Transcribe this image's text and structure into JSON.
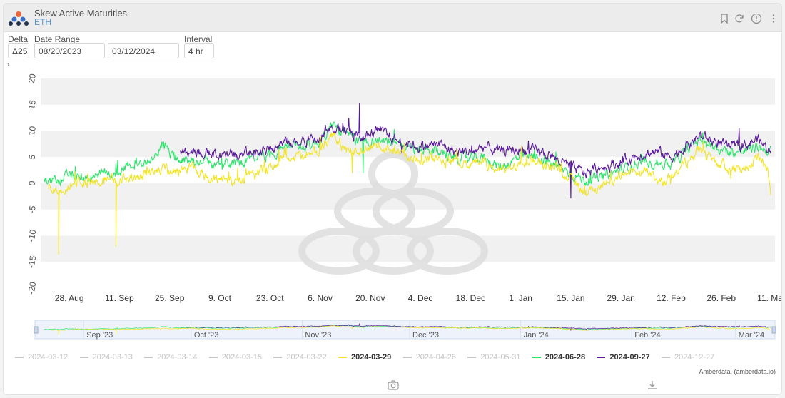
{
  "header": {
    "title": "Skew Active Maturities",
    "subtitle": "ETH"
  },
  "controls": {
    "delta_label": "Delta",
    "delta_value": "Δ25",
    "range_label": "Date Range",
    "range_start": "08/20/2023",
    "range_end": "03/12/2024",
    "interval_label": "Interval",
    "interval_value": "4 hr"
  },
  "colors": {
    "yellow": "#f2e52a",
    "green": "#2ee36a",
    "purple": "#5a1a9a",
    "inactive": "#c8c8c8",
    "axis_text": "#555555"
  },
  "credit": "Amberdata, (amberdata.io)",
  "chart_data": {
    "type": "line",
    "title": "Skew Active Maturities",
    "ylim": [
      -20,
      20
    ],
    "y_ticks": [
      20,
      15,
      10,
      5,
      0,
      -5,
      -10,
      -15,
      -20
    ],
    "x_domain": [
      "2023-08-20",
      "2024-03-12"
    ],
    "x_ticks": [
      {
        "date": "2023-08-28",
        "label": "28. Aug"
      },
      {
        "date": "2023-09-11",
        "label": "11. Sep"
      },
      {
        "date": "2023-09-25",
        "label": "25. Sep"
      },
      {
        "date": "2023-10-09",
        "label": "9. Oct"
      },
      {
        "date": "2023-10-23",
        "label": "23. Oct"
      },
      {
        "date": "2023-11-06",
        "label": "6. Nov"
      },
      {
        "date": "2023-11-20",
        "label": "20. Nov"
      },
      {
        "date": "2023-12-04",
        "label": "4. Dec"
      },
      {
        "date": "2023-12-18",
        "label": "18. Dec"
      },
      {
        "date": "2024-01-01",
        "label": "1. Jan"
      },
      {
        "date": "2024-01-15",
        "label": "15. Jan"
      },
      {
        "date": "2024-01-29",
        "label": "29. Jan"
      },
      {
        "date": "2024-02-12",
        "label": "12. Feb"
      },
      {
        "date": "2024-02-26",
        "label": "26. Feb"
      },
      {
        "date": "2024-03-11",
        "label": "11. Mar"
      }
    ],
    "navigator_ticks": [
      {
        "date": "2023-09-01",
        "label": "Sep '23"
      },
      {
        "date": "2023-10-01",
        "label": "Oct '23"
      },
      {
        "date": "2023-11-01",
        "label": "Nov '23"
      },
      {
        "date": "2023-12-01",
        "label": "Dec '23"
      },
      {
        "date": "2024-01-01",
        "label": "Jan '24"
      },
      {
        "date": "2024-02-01",
        "label": "Feb '24"
      },
      {
        "date": "2024-03-01",
        "label": "Mar '24"
      }
    ],
    "legend": [
      {
        "name": "2024-03-12",
        "active": false
      },
      {
        "name": "2024-03-13",
        "active": false
      },
      {
        "name": "2024-03-14",
        "active": false
      },
      {
        "name": "2024-03-15",
        "active": false
      },
      {
        "name": "2024-03-22",
        "active": false
      },
      {
        "name": "2024-03-29",
        "active": true,
        "color": "yellow"
      },
      {
        "name": "2024-04-26",
        "active": false
      },
      {
        "name": "2024-05-31",
        "active": false
      },
      {
        "name": "2024-06-28",
        "active": true,
        "color": "green"
      },
      {
        "name": "2024-09-27",
        "active": true,
        "color": "purple"
      },
      {
        "name": "2024-12-27",
        "active": false
      }
    ],
    "series": [
      {
        "name": "2024-03-29",
        "color": "yellow",
        "start": "2023-08-22",
        "points": [
          [
            "2023-08-22",
            -1
          ],
          [
            "2023-08-24",
            -1.5
          ],
          [
            "2023-08-25",
            -13.5
          ],
          [
            "2023-08-26",
            -1
          ],
          [
            "2023-08-30",
            0
          ],
          [
            "2023-09-05",
            0.5
          ],
          [
            "2023-09-09",
            0.5
          ],
          [
            "2023-09-10",
            -12
          ],
          [
            "2023-09-11",
            1
          ],
          [
            "2023-09-15",
            1
          ],
          [
            "2023-09-20",
            2
          ],
          [
            "2023-09-23",
            3
          ],
          [
            "2023-09-25",
            2
          ],
          [
            "2023-10-01",
            3
          ],
          [
            "2023-10-05",
            1.5
          ],
          [
            "2023-10-09",
            1
          ],
          [
            "2023-10-13",
            0
          ],
          [
            "2023-10-16",
            1
          ],
          [
            "2023-10-20",
            2
          ],
          [
            "2023-10-23",
            3
          ],
          [
            "2023-10-27",
            5
          ],
          [
            "2023-11-01",
            5
          ],
          [
            "2023-11-03",
            6
          ],
          [
            "2023-11-06",
            6
          ],
          [
            "2023-11-09",
            9.5
          ],
          [
            "2023-11-12",
            7
          ],
          [
            "2023-11-16",
            6
          ],
          [
            "2023-11-20",
            7
          ],
          [
            "2023-11-24",
            7
          ],
          [
            "2023-11-28",
            6
          ],
          [
            "2023-12-01",
            5
          ],
          [
            "2023-12-04",
            4.5
          ],
          [
            "2023-12-08",
            4.5
          ],
          [
            "2023-12-12",
            4
          ],
          [
            "2023-12-18",
            3.5
          ],
          [
            "2023-12-22",
            4
          ],
          [
            "2023-12-26",
            2
          ],
          [
            "2024-01-01",
            4
          ],
          [
            "2024-01-05",
            4
          ],
          [
            "2024-01-10",
            3
          ],
          [
            "2024-01-15",
            1.5
          ],
          [
            "2024-01-19",
            -2
          ],
          [
            "2024-01-23",
            -1
          ],
          [
            "2024-01-29",
            1.5
          ],
          [
            "2024-02-02",
            2.5
          ],
          [
            "2024-02-06",
            2
          ],
          [
            "2024-02-09",
            0
          ],
          [
            "2024-02-12",
            1
          ],
          [
            "2024-02-16",
            4
          ],
          [
            "2024-02-20",
            6.5
          ],
          [
            "2024-02-24",
            4
          ],
          [
            "2024-02-28",
            3
          ],
          [
            "2024-03-03",
            2
          ],
          [
            "2024-03-07",
            5
          ],
          [
            "2024-03-10",
            3
          ],
          [
            "2024-03-11",
            -3.5
          ]
        ]
      },
      {
        "name": "2024-06-28",
        "color": "green",
        "start": "2023-08-21",
        "points": [
          [
            "2023-08-21",
            0.5
          ],
          [
            "2023-08-24",
            0.5
          ],
          [
            "2023-08-28",
            1.5
          ],
          [
            "2023-09-01",
            1
          ],
          [
            "2023-09-05",
            1.5
          ],
          [
            "2023-09-11",
            2
          ],
          [
            "2023-09-15",
            4
          ],
          [
            "2023-09-20",
            4
          ],
          [
            "2023-09-23",
            7.5
          ],
          [
            "2023-09-26",
            5
          ],
          [
            "2023-10-01",
            4.5
          ],
          [
            "2023-10-09",
            3.5
          ],
          [
            "2023-10-16",
            4
          ],
          [
            "2023-10-23",
            5.5
          ],
          [
            "2023-10-28",
            7
          ],
          [
            "2023-11-01",
            7
          ],
          [
            "2023-11-06",
            8
          ],
          [
            "2023-11-09",
            11
          ],
          [
            "2023-11-13",
            9.5
          ],
          [
            "2023-11-16",
            8
          ],
          [
            "2023-11-20",
            8
          ],
          [
            "2023-11-24",
            8.5
          ],
          [
            "2023-11-28",
            7
          ],
          [
            "2023-12-04",
            6
          ],
          [
            "2023-12-09",
            6
          ],
          [
            "2023-12-14",
            5
          ],
          [
            "2023-12-18",
            4.5
          ],
          [
            "2023-12-22",
            5
          ],
          [
            "2023-12-26",
            3
          ],
          [
            "2024-01-01",
            5
          ],
          [
            "2024-01-06",
            5
          ],
          [
            "2024-01-10",
            3.5
          ],
          [
            "2024-01-15",
            2
          ],
          [
            "2024-01-19",
            0.5
          ],
          [
            "2024-01-23",
            1
          ],
          [
            "2024-01-29",
            2.5
          ],
          [
            "2024-02-03",
            4
          ],
          [
            "2024-02-08",
            4
          ],
          [
            "2024-02-12",
            3.5
          ],
          [
            "2024-02-16",
            6
          ],
          [
            "2024-02-20",
            8.5
          ],
          [
            "2024-02-24",
            7
          ],
          [
            "2024-02-28",
            6
          ],
          [
            "2024-03-03",
            6
          ],
          [
            "2024-03-07",
            7
          ],
          [
            "2024-03-11",
            6
          ]
        ]
      },
      {
        "name": "2024-09-27",
        "color": "purple",
        "start": "2023-09-28",
        "points": [
          [
            "2023-09-28",
            6
          ],
          [
            "2023-10-03",
            6
          ],
          [
            "2023-10-09",
            5.5
          ],
          [
            "2023-10-16",
            5.5
          ],
          [
            "2023-10-23",
            6.5
          ],
          [
            "2023-10-28",
            8
          ],
          [
            "2023-11-01",
            8
          ],
          [
            "2023-11-06",
            9
          ],
          [
            "2023-11-09",
            11
          ],
          [
            "2023-11-14",
            10
          ],
          [
            "2023-11-18",
            9
          ],
          [
            "2023-11-20",
            10
          ],
          [
            "2023-11-24",
            9.5
          ],
          [
            "2023-11-28",
            8
          ],
          [
            "2023-12-04",
            7
          ],
          [
            "2023-12-09",
            7.5
          ],
          [
            "2023-12-14",
            6
          ],
          [
            "2023-12-18",
            6
          ],
          [
            "2023-12-22",
            7
          ],
          [
            "2023-12-26",
            6
          ],
          [
            "2024-01-01",
            6.5
          ],
          [
            "2024-01-06",
            6
          ],
          [
            "2024-01-10",
            5
          ],
          [
            "2024-01-15",
            3
          ],
          [
            "2024-01-19",
            2
          ],
          [
            "2024-01-23",
            3
          ],
          [
            "2024-01-29",
            4
          ],
          [
            "2024-02-03",
            5.5
          ],
          [
            "2024-02-08",
            6
          ],
          [
            "2024-02-12",
            5
          ],
          [
            "2024-02-16",
            7
          ],
          [
            "2024-02-20",
            9
          ],
          [
            "2024-02-24",
            8
          ],
          [
            "2024-02-28",
            7
          ],
          [
            "2024-03-03",
            7
          ],
          [
            "2024-03-07",
            8.5
          ],
          [
            "2024-03-11",
            6
          ]
        ]
      }
    ],
    "spikes": [
      {
        "series": "2024-09-27",
        "date": "2023-11-17",
        "value": 15.3
      },
      {
        "series": "2024-09-27",
        "date": "2024-01-15",
        "value": -2.8
      },
      {
        "series": "2024-09-27",
        "date": "2024-03-02",
        "value": 10.5
      },
      {
        "series": "2024-03-29",
        "date": "2023-11-15",
        "value": 2
      },
      {
        "series": "2024-06-28",
        "date": "2023-11-18",
        "value": 2
      }
    ]
  }
}
